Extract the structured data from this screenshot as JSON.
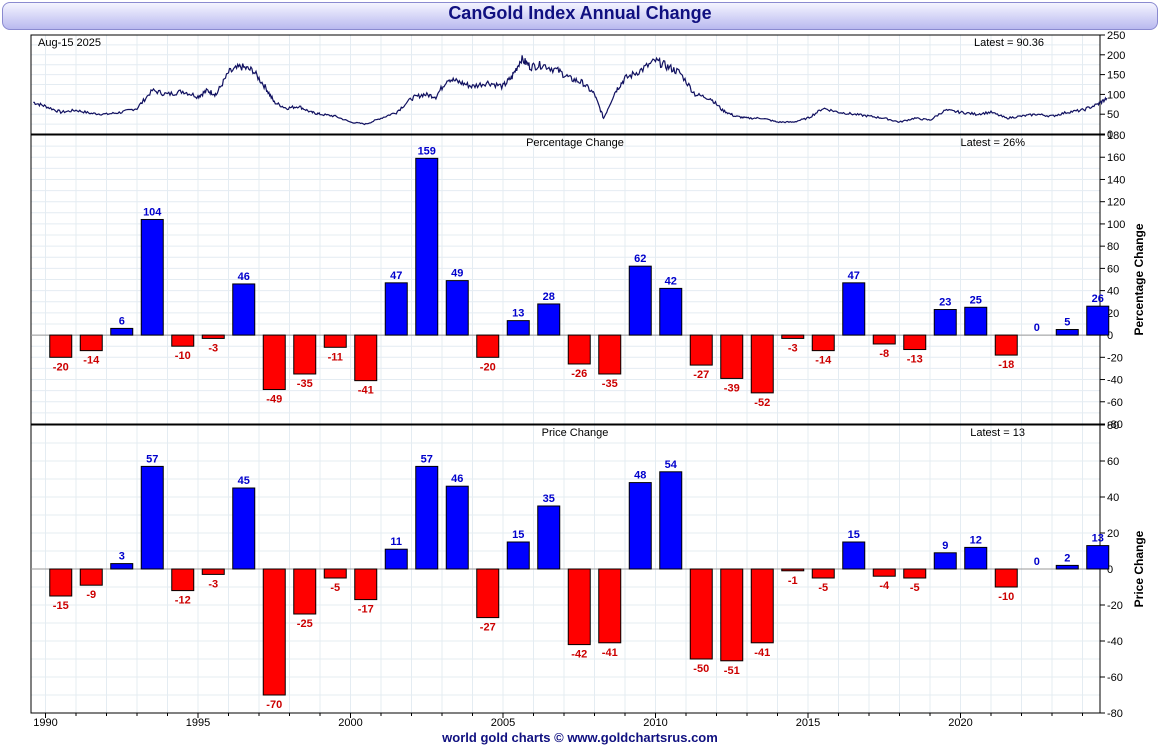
{
  "title": "CanGold Index Annual Change",
  "footer": "world gold charts © www.goldchartsrus.com",
  "colors": {
    "positive": "#0000ff",
    "negative": "#ff0000",
    "positive_label": "#0000cc",
    "negative_label": "#cc0000",
    "index_line": "#101060"
  },
  "chart_data": [
    {
      "type": "line",
      "panel": "index",
      "date_label": "Aug-15  2025",
      "latest_label": "Latest = 90.36",
      "ylim": [
        0,
        250
      ],
      "yticks": [
        0,
        50,
        100,
        150,
        200,
        250
      ],
      "xlim": [
        1989.6,
        2025.0
      ],
      "anchors": [
        [
          1989.6,
          80
        ],
        [
          1990.0,
          70
        ],
        [
          1990.5,
          55
        ],
        [
          1991.0,
          60
        ],
        [
          1991.5,
          52
        ],
        [
          1992.0,
          50
        ],
        [
          1992.5,
          55
        ],
        [
          1993.0,
          65
        ],
        [
          1993.5,
          110
        ],
        [
          1994.0,
          100
        ],
        [
          1994.5,
          108
        ],
        [
          1995.0,
          95
        ],
        [
          1995.3,
          110
        ],
        [
          1995.6,
          100
        ],
        [
          1996.0,
          155
        ],
        [
          1996.4,
          170
        ],
        [
          1996.8,
          160
        ],
        [
          1997.2,
          120
        ],
        [
          1997.5,
          80
        ],
        [
          1997.9,
          65
        ],
        [
          1998.3,
          70
        ],
        [
          1998.7,
          55
        ],
        [
          1999.0,
          50
        ],
        [
          1999.5,
          45
        ],
        [
          2000.0,
          30
        ],
        [
          2000.5,
          25
        ],
        [
          2001.0,
          40
        ],
        [
          2001.5,
          55
        ],
        [
          2002.0,
          90
        ],
        [
          2002.4,
          100
        ],
        [
          2002.8,
          95
        ],
        [
          2003.2,
          140
        ],
        [
          2003.6,
          130
        ],
        [
          2004.0,
          120
        ],
        [
          2004.5,
          130
        ],
        [
          2005.0,
          120
        ],
        [
          2005.3,
          145
        ],
        [
          2005.6,
          190
        ],
        [
          2005.9,
          170
        ],
        [
          2006.3,
          175
        ],
        [
          2006.8,
          160
        ],
        [
          2007.2,
          140
        ],
        [
          2007.6,
          130
        ],
        [
          2008.0,
          100
        ],
        [
          2008.3,
          40
        ],
        [
          2008.7,
          110
        ],
        [
          2009.0,
          140
        ],
        [
          2009.5,
          160
        ],
        [
          2010.0,
          185
        ],
        [
          2010.4,
          170
        ],
        [
          2010.8,
          155
        ],
        [
          2011.3,
          100
        ],
        [
          2011.8,
          90
        ],
        [
          2012.2,
          60
        ],
        [
          2012.6,
          45
        ],
        [
          2013.0,
          40
        ],
        [
          2013.5,
          40
        ],
        [
          2014.0,
          30
        ],
        [
          2014.5,
          30
        ],
        [
          2015.0,
          40
        ],
        [
          2015.5,
          65
        ],
        [
          2016.0,
          55
        ],
        [
          2016.5,
          50
        ],
        [
          2017.0,
          45
        ],
        [
          2017.5,
          40
        ],
        [
          2018.0,
          30
        ],
        [
          2018.5,
          40
        ],
        [
          2019.0,
          35
        ],
        [
          2019.5,
          60
        ],
        [
          2020.0,
          55
        ],
        [
          2020.5,
          50
        ],
        [
          2021.0,
          55
        ],
        [
          2021.5,
          40
        ],
        [
          2022.0,
          45
        ],
        [
          2022.5,
          50
        ],
        [
          2023.0,
          45
        ],
        [
          2023.5,
          55
        ],
        [
          2024.0,
          60
        ],
        [
          2024.5,
          75
        ],
        [
          2024.8,
          90.36
        ]
      ]
    },
    {
      "type": "bar",
      "panel": "percentage",
      "title": "Percentage Change",
      "latest_label": "Latest = 26%",
      "ylabel": "Percentage Change",
      "ylim": [
        -80,
        180
      ],
      "yticks": [
        -80,
        -60,
        -40,
        -20,
        0,
        20,
        40,
        60,
        80,
        100,
        120,
        140,
        160,
        180
      ],
      "categories": [
        1990,
        1991,
        1992,
        1993,
        1994,
        1995,
        1996,
        1997,
        1998,
        1999,
        2000,
        2001,
        2002,
        2003,
        2004,
        2005,
        2006,
        2007,
        2008,
        2009,
        2010,
        2011,
        2012,
        2013,
        2014,
        2015,
        2016,
        2017,
        2018,
        2019,
        2020,
        2021,
        2022,
        2023,
        2024
      ],
      "values": [
        -20,
        -14,
        6,
        104,
        -10,
        -3,
        46,
        -49,
        -35,
        -11,
        -41,
        47,
        159,
        49,
        -20,
        13,
        28,
        -26,
        -35,
        62,
        42,
        -27,
        -39,
        -52,
        -3,
        -14,
        47,
        -8,
        -13,
        23,
        25,
        -18,
        0,
        5,
        26
      ]
    },
    {
      "type": "bar",
      "panel": "price",
      "title": "Price Change",
      "latest_label": "Latest = 13",
      "ylabel": "Price Change",
      "ylim": [
        -80,
        80
      ],
      "yticks": [
        -80,
        -60,
        -40,
        -20,
        0,
        20,
        40,
        60,
        80
      ],
      "categories": [
        1990,
        1991,
        1992,
        1993,
        1994,
        1995,
        1996,
        1997,
        1998,
        1999,
        2000,
        2001,
        2002,
        2003,
        2004,
        2005,
        2006,
        2007,
        2008,
        2009,
        2010,
        2011,
        2012,
        2013,
        2014,
        2015,
        2016,
        2017,
        2018,
        2019,
        2020,
        2021,
        2022,
        2023,
        2024
      ],
      "values": [
        -15,
        -9,
        3,
        57,
        -12,
        -3,
        45,
        -70,
        -25,
        -5,
        -17,
        11,
        57,
        46,
        -27,
        15,
        35,
        -42,
        -41,
        48,
        54,
        -50,
        -51,
        -41,
        -1,
        -5,
        15,
        -4,
        -5,
        9,
        12,
        -10,
        0,
        2,
        13
      ]
    }
  ],
  "x_axis": {
    "ticks": [
      1990,
      1995,
      2000,
      2005,
      2010,
      2015,
      2020
    ]
  }
}
